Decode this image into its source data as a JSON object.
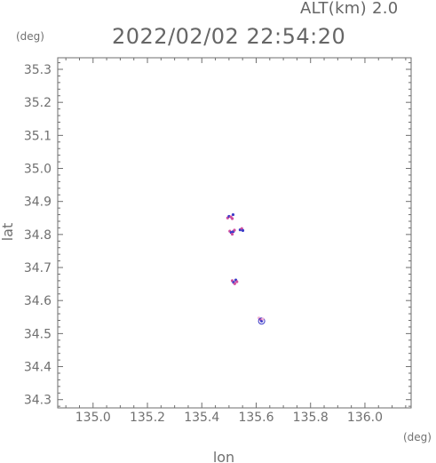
{
  "chart_data": {
    "type": "scatter",
    "title": "2022/02/02 22:54:20",
    "subtitle": "ALT(km) 2.0",
    "xlabel": "lon",
    "ylabel": "lat",
    "x_unit": "(deg)",
    "y_unit": "(deg)",
    "xlim": [
      134.87,
      136.17
    ],
    "ylim": [
      34.275,
      35.335
    ],
    "x_ticks": [
      "135.0",
      "135.2",
      "135.4",
      "135.6",
      "135.8",
      "136.0"
    ],
    "y_ticks": [
      "34.3",
      "34.4",
      "34.5",
      "34.6",
      "34.7",
      "34.8",
      "34.9",
      "35.0",
      "35.1",
      "35.2",
      "35.3"
    ],
    "grid": false,
    "points": [
      {
        "x": 135.495,
        "y": 34.85,
        "color": "#d04fa0"
      },
      {
        "x": 135.5,
        "y": 34.855,
        "color": "#3b3bc8"
      },
      {
        "x": 135.507,
        "y": 34.853,
        "color": "#d04fa0"
      },
      {
        "x": 135.512,
        "y": 34.848,
        "color": "#d04fa0"
      },
      {
        "x": 135.515,
        "y": 34.86,
        "color": "#3b3bc8"
      },
      {
        "x": 135.503,
        "y": 34.81,
        "color": "#d04fa0"
      },
      {
        "x": 135.508,
        "y": 34.806,
        "color": "#3b3bc8"
      },
      {
        "x": 135.512,
        "y": 34.801,
        "color": "#d04fa0"
      },
      {
        "x": 135.516,
        "y": 34.809,
        "color": "#3b3bc8"
      },
      {
        "x": 135.52,
        "y": 34.813,
        "color": "#d04fa0"
      },
      {
        "x": 135.541,
        "y": 34.814,
        "color": "#3b3bc8"
      },
      {
        "x": 135.547,
        "y": 34.818,
        "color": "#d04fa0"
      },
      {
        "x": 135.551,
        "y": 34.812,
        "color": "#3b3bc8"
      },
      {
        "x": 135.512,
        "y": 34.66,
        "color": "#d04fa0"
      },
      {
        "x": 135.517,
        "y": 34.655,
        "color": "#3b3bc8"
      },
      {
        "x": 135.521,
        "y": 34.651,
        "color": "#d04fa0"
      },
      {
        "x": 135.525,
        "y": 34.662,
        "color": "#3b3bc8"
      },
      {
        "x": 135.529,
        "y": 34.657,
        "color": "#d04fa0"
      },
      {
        "x": 135.61,
        "y": 34.547,
        "color": "#f2b2d6"
      },
      {
        "x": 135.616,
        "y": 34.543,
        "color": "#d04fa0"
      },
      {
        "x": 135.62,
        "y": 34.538,
        "color": "#3b3bc8"
      },
      {
        "x": 135.624,
        "y": 34.544,
        "color": "#f2b2d6"
      }
    ]
  }
}
